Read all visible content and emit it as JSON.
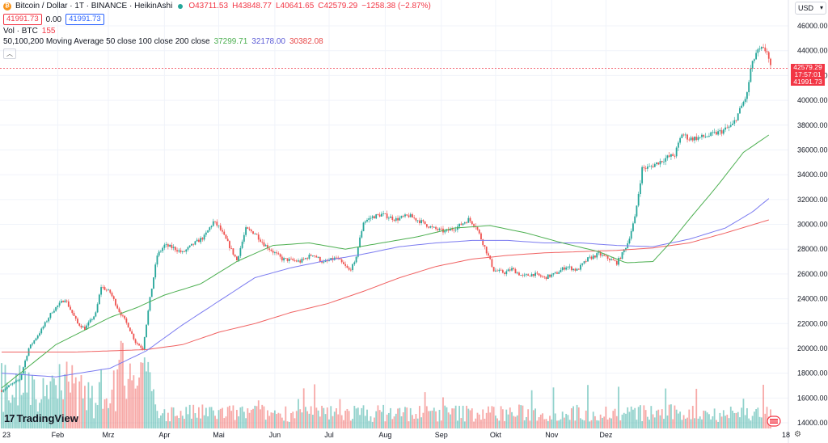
{
  "header": {
    "symbol": "Bitcoin / Dollar · 1T · BINANCE · HeikinAshi",
    "ohlc": {
      "o": "O43711.53",
      "h": "H43848.77",
      "l": "L40641.65",
      "c": "C42579.29",
      "chg": "−1258.38 (−2.87%)"
    },
    "bid": "41991.73",
    "spread": "0.00",
    "ask": "41991.73",
    "vol_label": "Vol · BTC",
    "vol_value": "155",
    "ma_label": "50,100,200 Moving Average 50 close 100 close 200 close",
    "ma50_val": "37299.71",
    "ma100_val": "32178.00",
    "ma200_val": "30382.08",
    "collapse_icon": "chevron-up-icon"
  },
  "currency_select": "USD",
  "logo_text": "TradingView",
  "price_labels": {
    "last": "42579.29",
    "countdown": "17:57:01",
    "bid": "41991.73"
  },
  "colors": {
    "up": "#26a69a",
    "down": "#ef5350",
    "ma50": "#4caf50",
    "ma100": "#7b7bf0",
    "ma200": "#f06262",
    "price_line": "#f23645"
  },
  "chart_data": {
    "type": "candlestick",
    "y_ticks": [
      "46000.00",
      "44000.00",
      "42000.00",
      "40000.00",
      "38000.00",
      "36000.00",
      "34000.00",
      "32000.00",
      "30000.00",
      "28000.00",
      "26000.00",
      "24000.00",
      "22000.00",
      "20000.00",
      "18000.00",
      "16000.00",
      "14000.00"
    ],
    "x_ticks": [
      "23",
      "Feb",
      "Mrz",
      "Apr",
      "Mai",
      "Jun",
      "Jul",
      "Aug",
      "Sep",
      "Okt",
      "Nov",
      "Dez",
      "18"
    ],
    "ylim": [
      14000,
      47000
    ],
    "price_anchors": [
      [
        0,
        16600
      ],
      [
        10,
        17500
      ],
      [
        15,
        20000
      ],
      [
        22,
        21500
      ],
      [
        28,
        23000
      ],
      [
        35,
        24000
      ],
      [
        42,
        22000
      ],
      [
        46,
        21600
      ],
      [
        52,
        22800
      ],
      [
        55,
        25000
      ],
      [
        60,
        24500
      ],
      [
        65,
        23000
      ],
      [
        70,
        21800
      ],
      [
        74,
        20500
      ],
      [
        78,
        20000
      ],
      [
        82,
        24000
      ],
      [
        86,
        27500
      ],
      [
        90,
        28300
      ],
      [
        95,
        28100
      ],
      [
        100,
        27700
      ],
      [
        106,
        28400
      ],
      [
        112,
        29000
      ],
      [
        117,
        30200
      ],
      [
        120,
        29800
      ],
      [
        125,
        28500
      ],
      [
        130,
        27100
      ],
      [
        135,
        29600
      ],
      [
        140,
        29300
      ],
      [
        145,
        28400
      ],
      [
        150,
        27800
      ],
      [
        155,
        27200
      ],
      [
        165,
        27000
      ],
      [
        172,
        27600
      ],
      [
        178,
        26900
      ],
      [
        185,
        27300
      ],
      [
        192,
        26300
      ],
      [
        195,
        26800
      ],
      [
        200,
        30200
      ],
      [
        205,
        30600
      ],
      [
        210,
        30800
      ],
      [
        218,
        30400
      ],
      [
        225,
        30700
      ],
      [
        232,
        30200
      ],
      [
        238,
        29700
      ],
      [
        245,
        29400
      ],
      [
        252,
        29800
      ],
      [
        258,
        30400
      ],
      [
        262,
        29900
      ],
      [
        268,
        27800
      ],
      [
        272,
        26300
      ],
      [
        278,
        26100
      ],
      [
        282,
        26400
      ],
      [
        288,
        25800
      ],
      [
        294,
        26000
      ],
      [
        300,
        25700
      ],
      [
        306,
        26000
      ],
      [
        312,
        26600
      ],
      [
        318,
        26300
      ],
      [
        324,
        27200
      ],
      [
        330,
        27600
      ],
      [
        336,
        27200
      ],
      [
        340,
        26900
      ],
      [
        343,
        27600
      ],
      [
        346,
        28500
      ],
      [
        350,
        30500
      ],
      [
        354,
        34500
      ],
      [
        358,
        34600
      ],
      [
        363,
        35000
      ],
      [
        368,
        35400
      ],
      [
        372,
        35600
      ],
      [
        376,
        37300
      ],
      [
        380,
        36900
      ],
      [
        386,
        37000
      ],
      [
        392,
        37200
      ],
      [
        398,
        37500
      ],
      [
        404,
        38000
      ],
      [
        408,
        39200
      ],
      [
        412,
        40500
      ],
      [
        414,
        42500
      ],
      [
        417,
        43800
      ],
      [
        420,
        44100
      ],
      [
        423,
        44000
      ],
      [
        425,
        42600
      ]
    ],
    "ma50_anchors": [
      [
        0,
        16800
      ],
      [
        30,
        20300
      ],
      [
        60,
        22500
      ],
      [
        75,
        23300
      ],
      [
        90,
        24300
      ],
      [
        110,
        25200
      ],
      [
        130,
        27000
      ],
      [
        150,
        28300
      ],
      [
        170,
        28500
      ],
      [
        190,
        28000
      ],
      [
        210,
        28500
      ],
      [
        230,
        29000
      ],
      [
        250,
        29700
      ],
      [
        270,
        29900
      ],
      [
        290,
        29300
      ],
      [
        310,
        28500
      ],
      [
        330,
        27800
      ],
      [
        345,
        26900
      ],
      [
        360,
        27000
      ],
      [
        370,
        28600
      ],
      [
        380,
        30400
      ],
      [
        395,
        33000
      ],
      [
        410,
        35800
      ],
      [
        425,
        37300
      ]
    ],
    "ma100_anchors": [
      [
        0,
        18000
      ],
      [
        30,
        17700
      ],
      [
        60,
        18400
      ],
      [
        80,
        19800
      ],
      [
        100,
        21900
      ],
      [
        120,
        23800
      ],
      [
        140,
        25700
      ],
      [
        160,
        26500
      ],
      [
        180,
        27100
      ],
      [
        200,
        27600
      ],
      [
        220,
        28200
      ],
      [
        240,
        28500
      ],
      [
        260,
        28700
      ],
      [
        280,
        28700
      ],
      [
        300,
        28500
      ],
      [
        320,
        28500
      ],
      [
        340,
        28300
      ],
      [
        360,
        28200
      ],
      [
        380,
        28800
      ],
      [
        400,
        29700
      ],
      [
        415,
        31000
      ],
      [
        425,
        32200
      ]
    ],
    "ma200_anchors": [
      [
        0,
        19700
      ],
      [
        40,
        19700
      ],
      [
        80,
        19900
      ],
      [
        100,
        20300
      ],
      [
        120,
        21300
      ],
      [
        140,
        22000
      ],
      [
        160,
        22900
      ],
      [
        180,
        23600
      ],
      [
        200,
        24600
      ],
      [
        220,
        25700
      ],
      [
        240,
        26600
      ],
      [
        260,
        27200
      ],
      [
        280,
        27500
      ],
      [
        300,
        27700
      ],
      [
        320,
        27800
      ],
      [
        340,
        27900
      ],
      [
        360,
        28100
      ],
      [
        380,
        28500
      ],
      [
        400,
        29300
      ],
      [
        425,
        30400
      ]
    ]
  }
}
